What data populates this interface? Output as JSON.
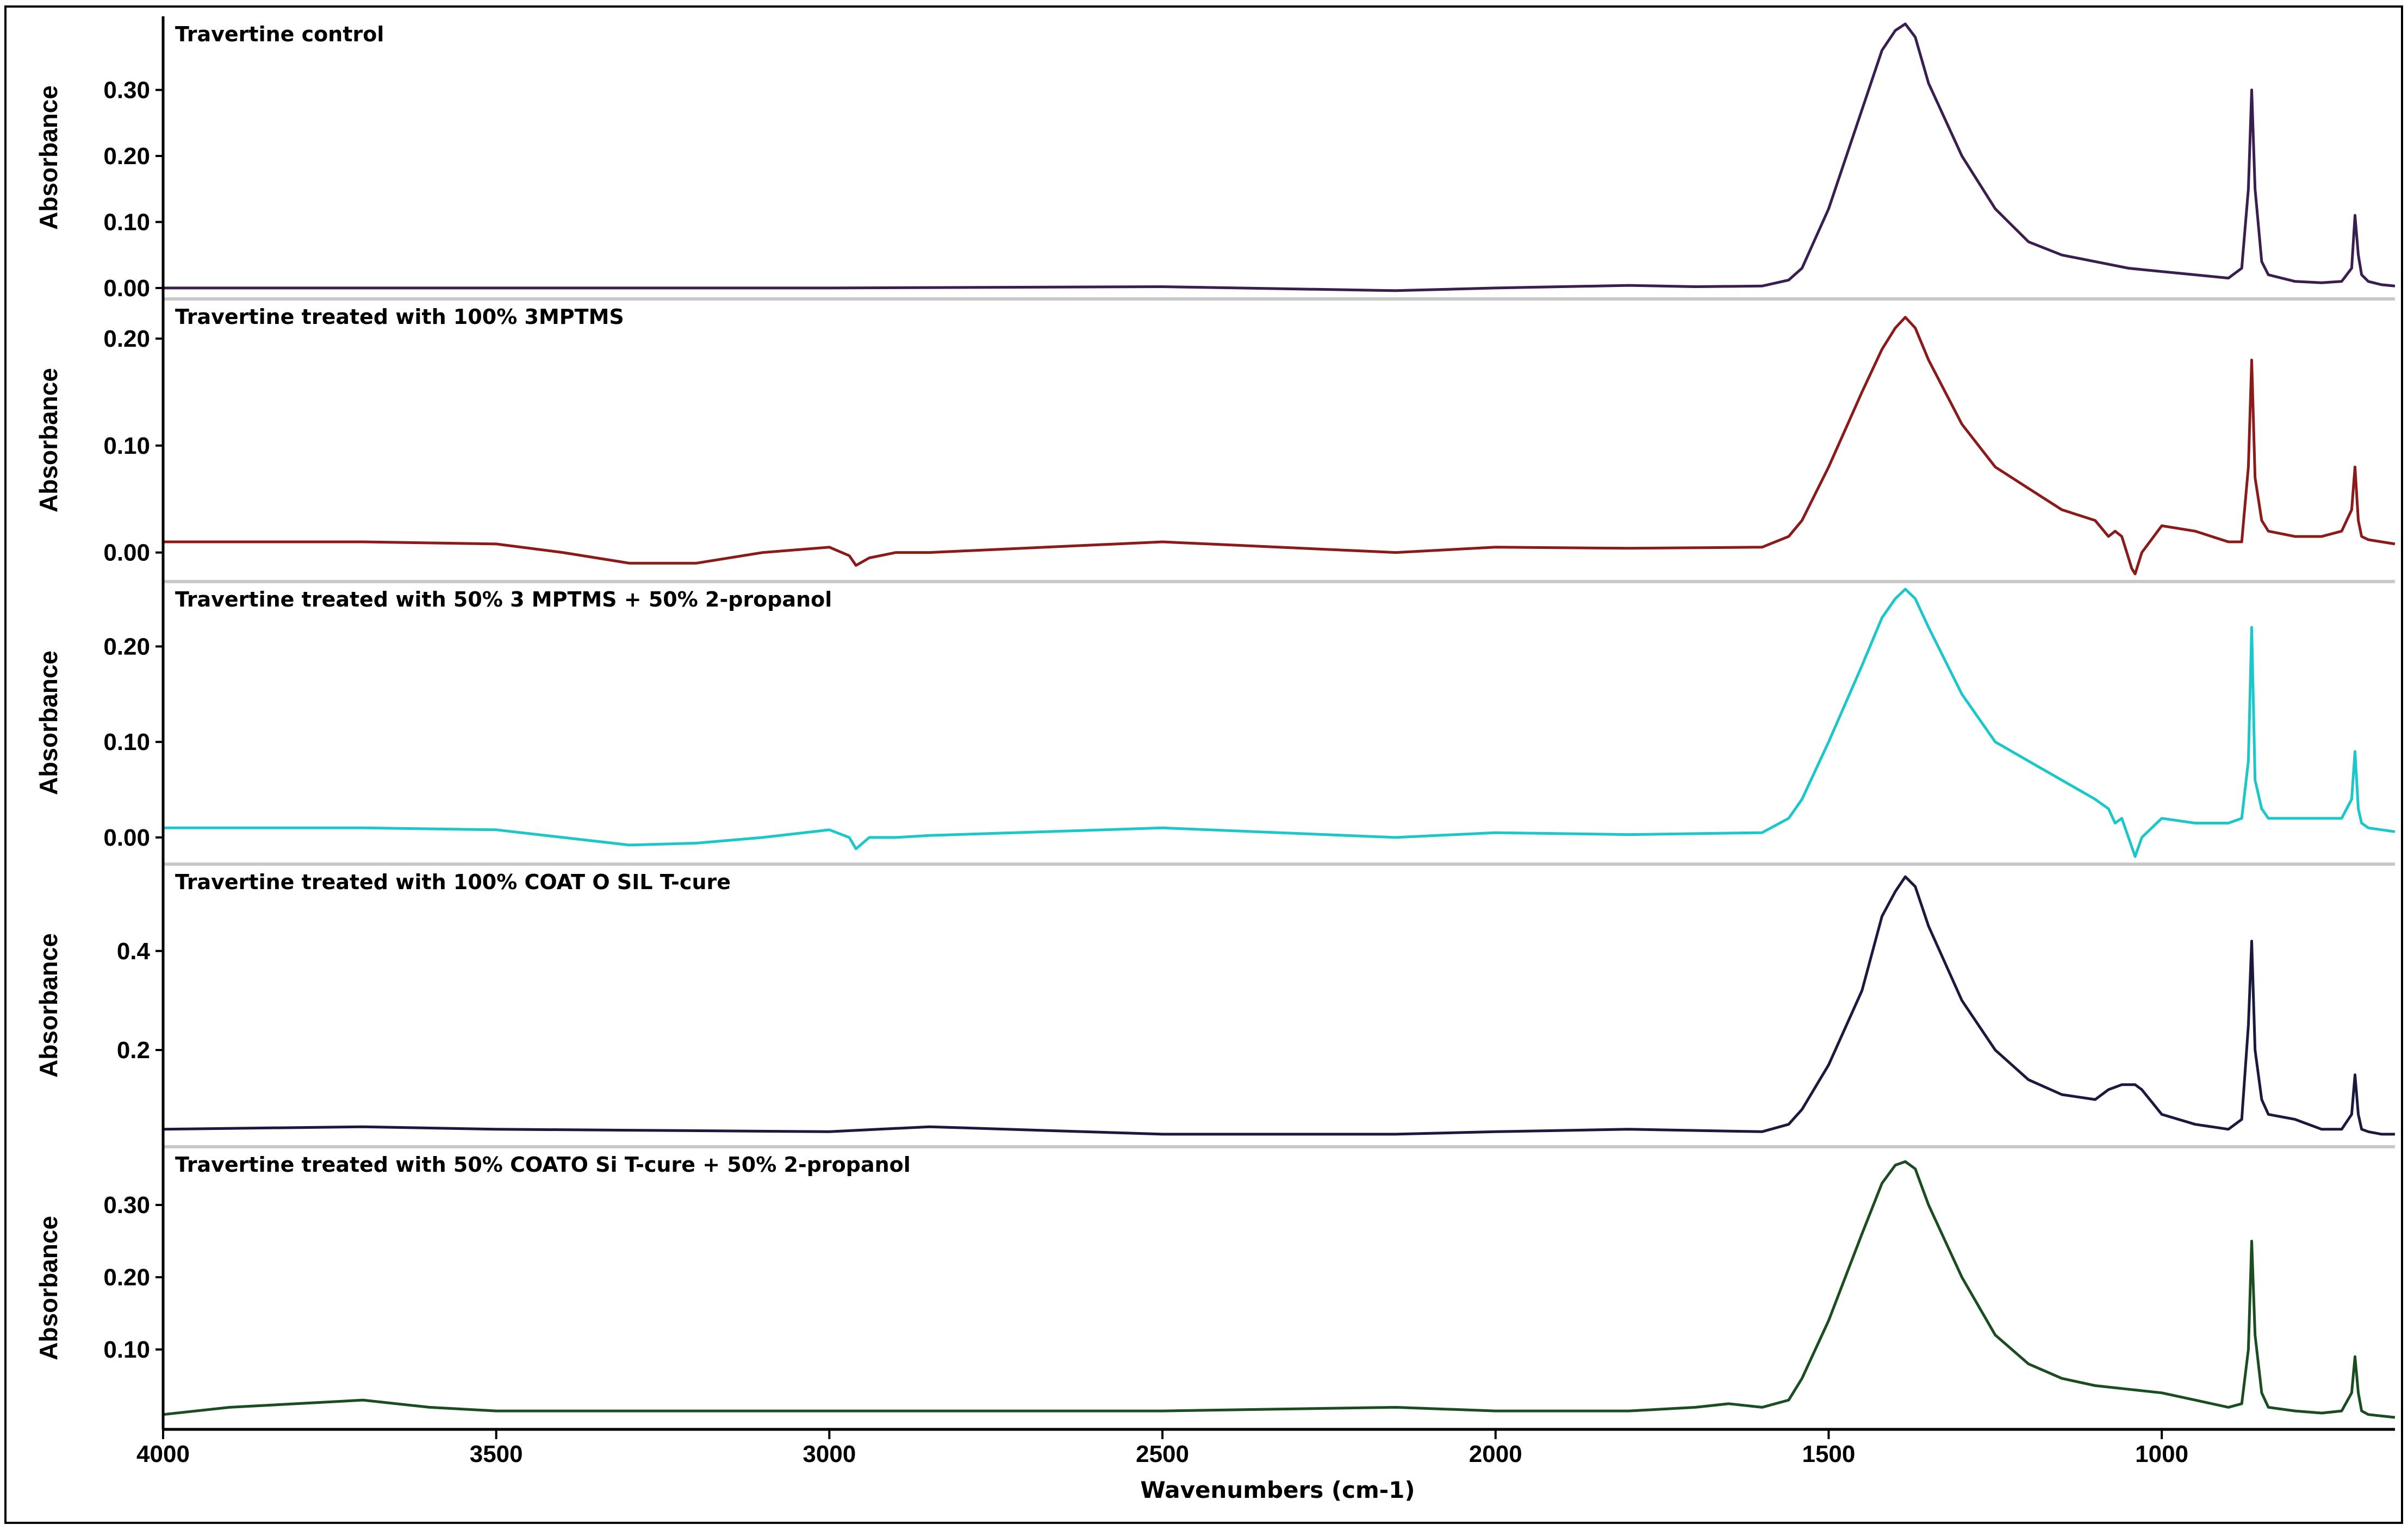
{
  "chart_data": {
    "type": "line",
    "xlabel": "Wavenumbers (cm-1)",
    "xlim": [
      4000,
      650
    ],
    "x_reversed": true,
    "xticks": [
      4000,
      3500,
      3000,
      2500,
      2000,
      1500,
      1000
    ],
    "xtick_labels": [
      "4000",
      "3500",
      "3000",
      "2500",
      "2000",
      "1500",
      "1000"
    ],
    "panels": [
      {
        "title": "Travertine control",
        "ylabel": "Absorbance",
        "color": "#3a1e4f",
        "ylim": [
          -0.005,
          0.4
        ],
        "yticks": [
          0.0,
          0.1,
          0.2,
          0.3
        ],
        "ytick_labels": [
          "0.00",
          "0.10",
          "0.20",
          "0.30"
        ],
        "x": [
          4000,
          3500,
          3000,
          2500,
          2150,
          2000,
          1800,
          1700,
          1600,
          1560,
          1540,
          1500,
          1450,
          1420,
          1400,
          1385,
          1370,
          1350,
          1300,
          1250,
          1200,
          1150,
          1100,
          1050,
          1000,
          950,
          900,
          880,
          870,
          865,
          860,
          850,
          840,
          800,
          760,
          730,
          715,
          710,
          705,
          700,
          690,
          670,
          650
        ],
        "values": [
          0.0,
          0.0,
          0.0,
          0.002,
          -0.004,
          0.0,
          0.004,
          0.002,
          0.003,
          0.012,
          0.03,
          0.12,
          0.27,
          0.36,
          0.39,
          0.4,
          0.38,
          0.31,
          0.2,
          0.12,
          0.07,
          0.05,
          0.04,
          0.03,
          0.025,
          0.02,
          0.015,
          0.03,
          0.15,
          0.3,
          0.15,
          0.04,
          0.02,
          0.01,
          0.008,
          0.01,
          0.03,
          0.11,
          0.05,
          0.02,
          0.01,
          0.005,
          0.003
        ]
      },
      {
        "title": "Travertine treated with 100%  3MPTMS",
        "ylabel": "Absorbance",
        "color": "#8b1a1a",
        "ylim": [
          -0.02,
          0.23
        ],
        "yticks": [
          0.0,
          0.1,
          0.2
        ],
        "ytick_labels": [
          "0.00",
          "0.10",
          "0.20"
        ],
        "x": [
          4000,
          3700,
          3500,
          3400,
          3300,
          3200,
          3100,
          3000,
          2970,
          2960,
          2940,
          2900,
          2850,
          2500,
          2150,
          2000,
          1800,
          1600,
          1560,
          1540,
          1500,
          1450,
          1420,
          1400,
          1385,
          1370,
          1350,
          1300,
          1250,
          1200,
          1150,
          1100,
          1080,
          1070,
          1060,
          1050,
          1045,
          1040,
          1030,
          1000,
          950,
          900,
          880,
          870,
          865,
          860,
          850,
          840,
          800,
          760,
          730,
          715,
          710,
          705,
          700,
          690,
          670,
          650
        ],
        "values": [
          0.01,
          0.01,
          0.008,
          0.0,
          -0.01,
          -0.01,
          0.0,
          0.005,
          -0.003,
          -0.012,
          -0.005,
          0.0,
          0.0,
          0.01,
          0.0,
          0.005,
          0.004,
          0.005,
          0.015,
          0.03,
          0.08,
          0.15,
          0.19,
          0.21,
          0.22,
          0.21,
          0.18,
          0.12,
          0.08,
          0.06,
          0.04,
          0.03,
          0.015,
          0.02,
          0.015,
          -0.005,
          -0.015,
          -0.02,
          0.0,
          0.025,
          0.02,
          0.01,
          0.01,
          0.08,
          0.18,
          0.07,
          0.03,
          0.02,
          0.015,
          0.015,
          0.02,
          0.04,
          0.08,
          0.03,
          0.015,
          0.012,
          0.01,
          0.008
        ]
      },
      {
        "title": "Travertine treated with 50%   3 MPTMS + 50%  2-propanol",
        "ylabel": "Absorbance",
        "color": "#1cc7c9",
        "ylim": [
          -0.02,
          0.26
        ],
        "yticks": [
          0.0,
          0.1,
          0.2
        ],
        "ytick_labels": [
          "0.00",
          "0.10",
          "0.20"
        ],
        "x": [
          4000,
          3700,
          3500,
          3400,
          3300,
          3200,
          3100,
          3000,
          2970,
          2960,
          2940,
          2900,
          2850,
          2500,
          2150,
          2000,
          1800,
          1600,
          1560,
          1540,
          1500,
          1450,
          1420,
          1400,
          1385,
          1370,
          1350,
          1300,
          1250,
          1200,
          1150,
          1100,
          1080,
          1070,
          1060,
          1050,
          1045,
          1040,
          1030,
          1000,
          950,
          900,
          880,
          870,
          865,
          860,
          850,
          840,
          800,
          760,
          730,
          715,
          710,
          705,
          700,
          690,
          670,
          650
        ],
        "values": [
          0.01,
          0.01,
          0.008,
          0.0,
          -0.008,
          -0.006,
          0.0,
          0.008,
          0.0,
          -0.012,
          0.0,
          0.0,
          0.002,
          0.01,
          0.0,
          0.005,
          0.003,
          0.005,
          0.02,
          0.04,
          0.1,
          0.18,
          0.23,
          0.25,
          0.26,
          0.25,
          0.22,
          0.15,
          0.1,
          0.08,
          0.06,
          0.04,
          0.03,
          0.015,
          0.02,
          0.0,
          -0.01,
          -0.02,
          0.0,
          0.02,
          0.015,
          0.015,
          0.02,
          0.08,
          0.22,
          0.06,
          0.03,
          0.02,
          0.02,
          0.02,
          0.02,
          0.04,
          0.09,
          0.03,
          0.015,
          0.01,
          0.008,
          0.006
        ]
      },
      {
        "title": "Travertine  treated with 100%    COAT O SIL T-cure",
        "ylabel": "Absorbance",
        "color": "#1a1a3f",
        "ylim": [
          0.02,
          0.56
        ],
        "yticks": [
          0.2,
          0.4
        ],
        "ytick_labels": [
          "0.2",
          "0.4"
        ],
        "x": [
          4000,
          3700,
          3500,
          3000,
          2850,
          2500,
          2150,
          2000,
          1800,
          1600,
          1560,
          1540,
          1500,
          1450,
          1420,
          1400,
          1385,
          1370,
          1350,
          1300,
          1250,
          1200,
          1150,
          1100,
          1080,
          1060,
          1040,
          1030,
          1000,
          950,
          900,
          880,
          870,
          865,
          860,
          850,
          840,
          800,
          760,
          730,
          715,
          710,
          705,
          700,
          690,
          670,
          650
        ],
        "values": [
          0.04,
          0.045,
          0.04,
          0.035,
          0.045,
          0.03,
          0.03,
          0.035,
          0.04,
          0.035,
          0.05,
          0.08,
          0.17,
          0.32,
          0.47,
          0.52,
          0.55,
          0.53,
          0.45,
          0.3,
          0.2,
          0.14,
          0.11,
          0.1,
          0.12,
          0.13,
          0.13,
          0.12,
          0.07,
          0.05,
          0.04,
          0.06,
          0.25,
          0.42,
          0.2,
          0.1,
          0.07,
          0.06,
          0.04,
          0.04,
          0.07,
          0.15,
          0.07,
          0.04,
          0.035,
          0.03,
          0.03
        ]
      },
      {
        "title": "Travertine treated with 50% COATO Si T-cure + 50%   2-propanol",
        "ylabel": "Absorbance",
        "color": "#1a4d1f",
        "ylim": [
          0.0,
          0.37
        ],
        "yticks": [
          0.1,
          0.2,
          0.3
        ],
        "ytick_labels": [
          "0.10",
          "0.20",
          "0.30"
        ],
        "x": [
          4000,
          3900,
          3800,
          3700,
          3600,
          3500,
          3000,
          2500,
          2150,
          2000,
          1800,
          1700,
          1650,
          1600,
          1560,
          1540,
          1500,
          1450,
          1420,
          1400,
          1385,
          1370,
          1350,
          1300,
          1250,
          1200,
          1150,
          1100,
          1050,
          1000,
          950,
          900,
          880,
          870,
          865,
          860,
          850,
          840,
          800,
          760,
          730,
          715,
          710,
          705,
          700,
          690,
          670,
          650
        ],
        "values": [
          0.01,
          0.02,
          0.025,
          0.03,
          0.02,
          0.015,
          0.015,
          0.015,
          0.02,
          0.015,
          0.015,
          0.02,
          0.025,
          0.02,
          0.03,
          0.06,
          0.14,
          0.26,
          0.33,
          0.355,
          0.36,
          0.35,
          0.3,
          0.2,
          0.12,
          0.08,
          0.06,
          0.05,
          0.045,
          0.04,
          0.03,
          0.02,
          0.025,
          0.1,
          0.25,
          0.12,
          0.04,
          0.02,
          0.015,
          0.012,
          0.015,
          0.04,
          0.09,
          0.04,
          0.015,
          0.01,
          0.008,
          0.006
        ]
      }
    ]
  }
}
